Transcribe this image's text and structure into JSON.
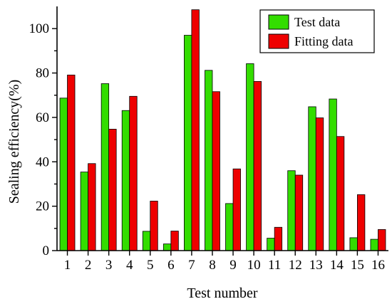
{
  "chart_data": {
    "type": "bar",
    "xlabel": "Test number",
    "ylabel": "Sealing efficiency(%)",
    "ylim": [
      0,
      110
    ],
    "yticks": [
      0,
      20,
      40,
      60,
      80,
      100
    ],
    "categories": [
      "1",
      "2",
      "3",
      "4",
      "5",
      "6",
      "7",
      "8",
      "9",
      "10",
      "11",
      "12",
      "13",
      "14",
      "15",
      "16"
    ],
    "series": [
      {
        "name": "Test data",
        "color": "#33dd00",
        "values": [
          68.7,
          35.4,
          75.2,
          63.1,
          8.7,
          3.0,
          97.0,
          81.2,
          21.2,
          84.2,
          5.6,
          36.0,
          64.8,
          68.3,
          5.8,
          5.1
        ]
      },
      {
        "name": "Fitting data",
        "color": "#ee0000",
        "values": [
          79.1,
          39.2,
          54.7,
          69.5,
          22.3,
          8.8,
          108.5,
          71.6,
          36.8,
          76.2,
          10.5,
          34.0,
          59.8,
          51.4,
          25.2,
          9.5
        ]
      }
    ],
    "grid": false,
    "legend_position": "top-right"
  }
}
